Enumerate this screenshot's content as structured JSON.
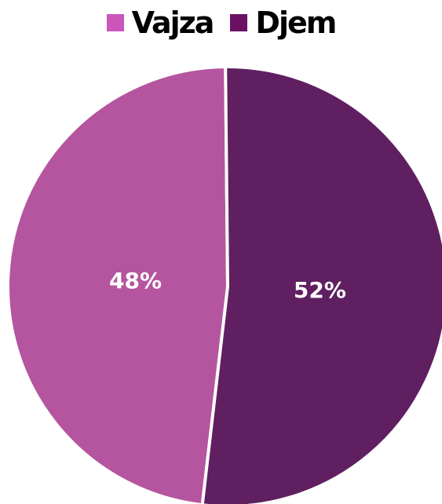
{
  "chart_data": {
    "type": "pie",
    "title": "",
    "legend_position": "top",
    "categories": [
      "Vajza",
      "Djem"
    ],
    "values": [
      48,
      52
    ],
    "labels": [
      "48%",
      "52%"
    ],
    "slice_colors": [
      "#b5559f",
      "#5f1f61"
    ],
    "legend_colors": [
      "#cc55bb",
      "#6a1163"
    ]
  }
}
